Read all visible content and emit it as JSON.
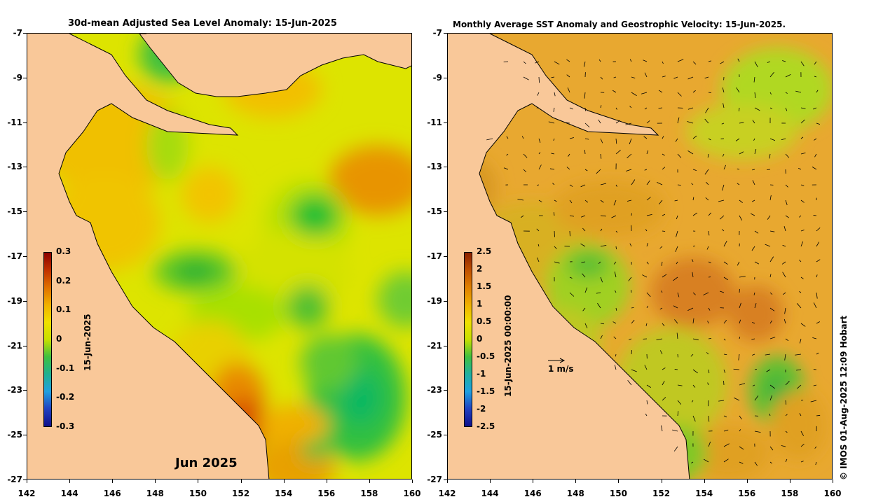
{
  "left_panel": {
    "title": "30d-mean Adjusted Sea Level Anomaly: 15-Jun-2025",
    "month_label": "Jun 2025",
    "colorbar": {
      "label": "15-Jun-2025",
      "ticks": [
        "0.3",
        "0.2",
        "0.1",
        "0",
        "-0.1",
        "-0.2",
        "-0.3"
      ]
    }
  },
  "right_panel": {
    "title": "Monthly Average SST Anomaly  and Geostrophic Velocity: 15-Jun-2025.",
    "velocity_scale_label": "1 m/s",
    "colorbar": {
      "label": "15-Jun-2025 00:00:00",
      "ticks": [
        "2.5",
        "2",
        "1.5",
        "1",
        "0.5",
        "0",
        "-0.5",
        "-1",
        "-1.5",
        "-2",
        "-2.5"
      ]
    }
  },
  "y_ticks": [
    "-7",
    "-9",
    "-11",
    "-13",
    "-15",
    "-17",
    "-19",
    "-21",
    "-23",
    "-25",
    "-27"
  ],
  "x_ticks": [
    "142",
    "144",
    "146",
    "148",
    "150",
    "152",
    "154",
    "156",
    "158",
    "160"
  ],
  "credit": "© IMOS 01-Aug-2025 12:09 Hobart",
  "colors": {
    "land": "#f9c899",
    "ssl_base": "#e8e000",
    "sst_base": "#e8a020"
  }
}
